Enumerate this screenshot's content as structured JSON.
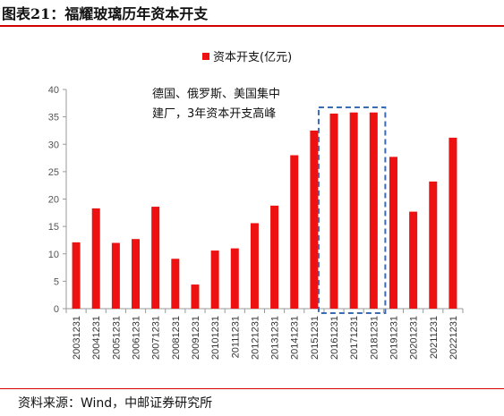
{
  "figure_title": "图表21：福耀玻璃历年资本开支",
  "source_text": "资料来源：Wind，中邮证券研究所",
  "colors": {
    "bar": "#ee1111",
    "accent_rule": "#d40000",
    "highlight_box": "#3a6bb5",
    "axis": "#999999"
  },
  "chart_data": {
    "type": "bar",
    "title": "",
    "xlabel": "",
    "ylabel": "",
    "ylim": [
      0,
      40
    ],
    "yticks": [
      0,
      5,
      10,
      15,
      20,
      25,
      30,
      35,
      40
    ],
    "grid": false,
    "legend_position": "top-right",
    "categories": [
      "20031231",
      "20041231",
      "20051231",
      "20061231",
      "20071231",
      "20081231",
      "20091231",
      "20101231",
      "20111231",
      "20121231",
      "20131231",
      "20141231",
      "20151231",
      "20161231",
      "20171231",
      "20181231",
      "20191231",
      "20201231",
      "20211231",
      "20221231"
    ],
    "series": [
      {
        "name": "资本开支(亿元)",
        "values": [
          12.1,
          18.3,
          12.0,
          12.7,
          18.6,
          9.1,
          4.4,
          10.6,
          11.0,
          15.6,
          18.8,
          28.0,
          32.5,
          35.6,
          35.8,
          35.8,
          27.7,
          17.7,
          23.2,
          31.2
        ]
      }
    ],
    "annotations": [
      {
        "lines": [
          "德国、俄罗斯、美国集中",
          "建厂，3年资本开支高峰"
        ],
        "highlight_categories": [
          "20161231",
          "20171231",
          "20181231"
        ]
      }
    ]
  }
}
